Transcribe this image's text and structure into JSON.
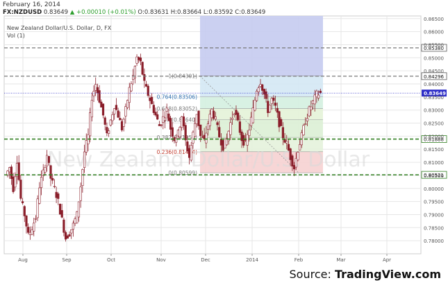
{
  "header": {
    "date": "February 16, 2014",
    "symbol": "FX:NZDUSD",
    "last": "0.83649",
    "change_arrow": "▲",
    "change": "+0.00010 (+0.01%)",
    "o_label": "O:",
    "o": "0.83631",
    "h_label": "H:",
    "h": "0.83664",
    "l_label": "L:",
    "l": "0.83592",
    "c_label": "C:",
    "c": "0.83649",
    "title": "New Zealand Dollar/U.S. Dollar, D, FX",
    "indicator": "Vol (1)"
  },
  "watermark": "New Zealand Dollar/U.S. Dollar",
  "source": {
    "prefix": "Source: ",
    "brand": "TradingView.com"
  },
  "colors": {
    "up": "#2e9e2e",
    "candle": "#8a1e2a",
    "grid": "#e6e6e6",
    "last_price": "#2d2dc8"
  },
  "chart_data": {
    "type": "candlestick",
    "ylim": [
      0.775,
      0.866
    ],
    "y_ticks": [
      "0.86500",
      "0.86000",
      "0.85500",
      "0.85000",
      "0.84500",
      "0.84000",
      "0.83500",
      "0.83000",
      "0.82500",
      "0.82000",
      "0.81500",
      "0.81000",
      "0.80500",
      "0.80000",
      "0.79500",
      "0.79000",
      "0.78500",
      "0.78000"
    ],
    "x_ticks": [
      "Aug",
      "Sep",
      "Oct",
      "Nov",
      "Dec",
      "2014",
      "Feb",
      "Mar",
      "Apr"
    ],
    "horizontal_levels": [
      {
        "value": 0.8538,
        "label": "0.85380",
        "style": "dashed-gray"
      },
      {
        "value": 0.84296,
        "label": "0.84296",
        "style": "dashed-gray"
      },
      {
        "value": 0.81888,
        "label": "0.81888",
        "style": "dashed-green"
      },
      {
        "value": 0.80521,
        "label": "0.80521",
        "style": "dashed-green"
      }
    ],
    "last_price": {
      "value": 0.83649,
      "label": "0.83649"
    },
    "fibonacci": [
      {
        "ratio": "1",
        "price": 0.84301,
        "label": "1(0.84301)"
      },
      {
        "ratio": "0.764",
        "price": 0.83506,
        "label": "0.764(0.83506)"
      },
      {
        "ratio": "0.618",
        "price": 0.83052,
        "label": "0.618(0.83052)"
      },
      {
        "ratio": "0.5",
        "price": 0.8264,
        "label": "0.5(0.82640)"
      },
      {
        "ratio": "0.382",
        "price": 0.81954,
        "label": "0.382(0.81954)"
      },
      {
        "ratio": "0.236",
        "price": 0.81404,
        "label": "0.236(0.81404)"
      },
      {
        "ratio": "0",
        "price": 0.80599,
        "label": "0(0.80599)"
      }
    ],
    "fib_zone_top": 0.866,
    "path_points": [
      0.805,
      0.808,
      0.8,
      0.811,
      0.796,
      0.79,
      0.782,
      0.785,
      0.789,
      0.801,
      0.806,
      0.813,
      0.804,
      0.8,
      0.795,
      0.788,
      0.781,
      0.783,
      0.786,
      0.79,
      0.801,
      0.814,
      0.82,
      0.835,
      0.84,
      0.834,
      0.828,
      0.82,
      0.826,
      0.832,
      0.828,
      0.823,
      0.83,
      0.838,
      0.843,
      0.85,
      0.848,
      0.84,
      0.836,
      0.832,
      0.828,
      0.824,
      0.827,
      0.83,
      0.823,
      0.819,
      0.821,
      0.828,
      0.818,
      0.812,
      0.821,
      0.829,
      0.82,
      0.818,
      0.825,
      0.83,
      0.826,
      0.82,
      0.816,
      0.819,
      0.825,
      0.83,
      0.825,
      0.819,
      0.817,
      0.823,
      0.83,
      0.838,
      0.841,
      0.836,
      0.83,
      0.834,
      0.831,
      0.825,
      0.82,
      0.817,
      0.812,
      0.808,
      0.815,
      0.82,
      0.826,
      0.83,
      0.833,
      0.836,
      0.8364
    ]
  }
}
